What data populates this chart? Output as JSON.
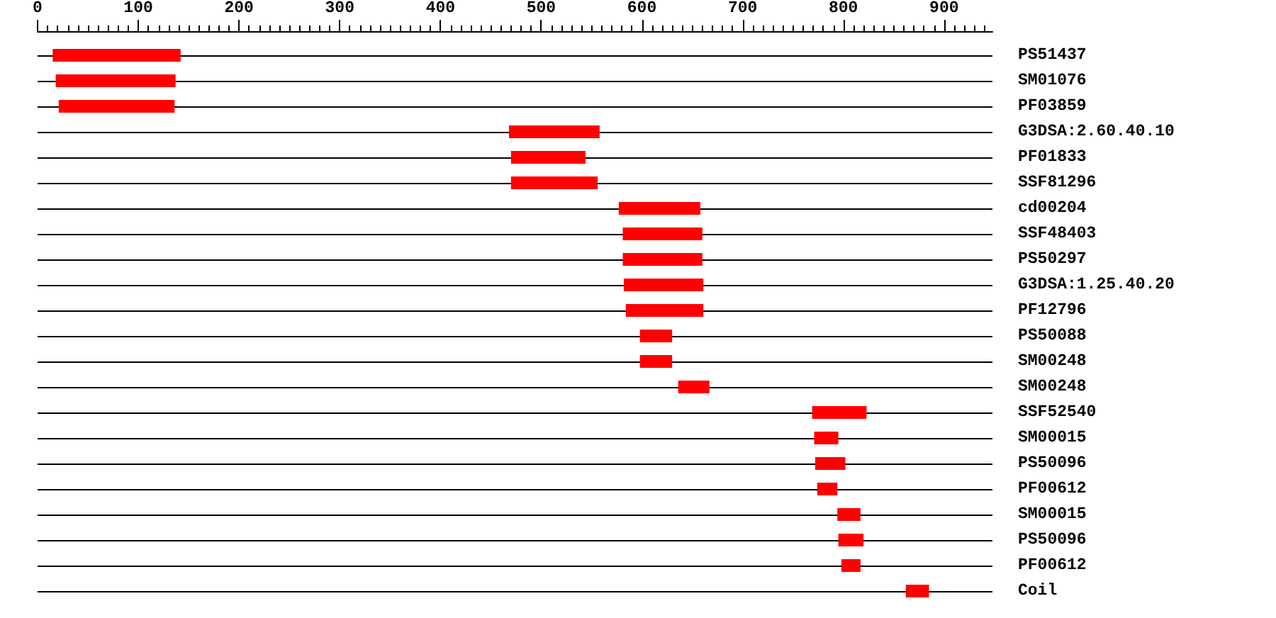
{
  "chart_data": {
    "type": "bar",
    "orientation": "horizontal",
    "color": "#ff0000",
    "grid": "y",
    "categories": [
      "PS51437",
      "SM01076",
      "PF03859",
      "G3DSA:2.60.40.10",
      "PF01833",
      "SSF81296",
      "cd00204",
      "SSF48403",
      "PS50297",
      "G3DSA:1.25.40.20",
      "PF12796",
      "PS50088",
      "SM00248",
      "SM00248",
      "SSF52540",
      "SM00015",
      "PS50096",
      "PF00612",
      "SM00015",
      "PS50096",
      "PF00612",
      "Coil"
    ],
    "base": [
      15,
      18,
      21,
      468,
      470,
      470,
      577,
      581,
      581,
      582,
      584,
      598,
      598,
      636,
      769,
      771,
      772,
      774,
      794,
      795,
      798,
      862
    ],
    "values": [
      127,
      119,
      115,
      90,
      74,
      86,
      81,
      79,
      79,
      79,
      77,
      32,
      32,
      31,
      54,
      24,
      30,
      20,
      23,
      25,
      19,
      23
    ],
    "xlim": [
      0,
      948
    ],
    "xticks": [
      0,
      {
        "value": 10,
        "label": null
      },
      {
        "value": 20,
        "label": null
      },
      {
        "value": 30,
        "label": null
      },
      {
        "value": 40,
        "label": null
      },
      {
        "value": 50,
        "label": null
      },
      {
        "value": 60,
        "label": null
      },
      {
        "value": 70,
        "label": null
      },
      {
        "value": 80,
        "label": null
      },
      {
        "value": 90,
        "label": null
      },
      100,
      {
        "value": 110,
        "label": null
      },
      {
        "value": 120,
        "label": null
      },
      {
        "value": 130,
        "label": null
      },
      {
        "value": 140,
        "label": null
      },
      {
        "value": 150,
        "label": null
      },
      {
        "value": 160,
        "label": null
      },
      {
        "value": 170,
        "label": null
      },
      {
        "value": 180,
        "label": null
      },
      {
        "value": 190,
        "label": null
      },
      200,
      {
        "value": 210,
        "label": null
      },
      {
        "value": 220,
        "label": null
      },
      {
        "value": 230,
        "label": null
      },
      {
        "value": 240,
        "label": null
      },
      {
        "value": 250,
        "label": null
      },
      {
        "value": 260,
        "label": null
      },
      {
        "value": 270,
        "label": null
      },
      {
        "value": 280,
        "label": null
      },
      {
        "value": 290,
        "label": null
      },
      300,
      {
        "value": 310,
        "label": null
      },
      {
        "value": 320,
        "label": null
      },
      {
        "value": 330,
        "label": null
      },
      {
        "value": 340,
        "label": null
      },
      {
        "value": 350,
        "label": null
      },
      {
        "value": 360,
        "label": null
      },
      {
        "value": 370,
        "label": null
      },
      {
        "value": 380,
        "label": null
      },
      {
        "value": 390,
        "label": null
      },
      400,
      {
        "value": 410,
        "label": null
      },
      {
        "value": 420,
        "label": null
      },
      {
        "value": 430,
        "label": null
      },
      {
        "value": 440,
        "label": null
      },
      {
        "value": 450,
        "label": null
      },
      {
        "value": 460,
        "label": null
      },
      {
        "value": 470,
        "label": null
      },
      {
        "value": 480,
        "label": null
      },
      {
        "value": 490,
        "label": null
      },
      500,
      {
        "value": 510,
        "label": null
      },
      {
        "value": 520,
        "label": null
      },
      {
        "value": 530,
        "label": null
      },
      {
        "value": 540,
        "label": null
      },
      {
        "value": 550,
        "label": null
      },
      {
        "value": 560,
        "label": null
      },
      {
        "value": 570,
        "label": null
      },
      {
        "value": 580,
        "label": null
      },
      {
        "value": 590,
        "label": null
      },
      600,
      {
        "value": 610,
        "label": null
      },
      {
        "value": 620,
        "label": null
      },
      {
        "value": 630,
        "label": null
      },
      {
        "value": 640,
        "label": null
      },
      {
        "value": 650,
        "label": null
      },
      {
        "value": 660,
        "label": null
      },
      {
        "value": 670,
        "label": null
      },
      {
        "value": 680,
        "label": null
      },
      {
        "value": 690,
        "label": null
      },
      700,
      {
        "value": 710,
        "label": null
      },
      {
        "value": 720,
        "label": null
      },
      {
        "value": 730,
        "label": null
      },
      {
        "value": 740,
        "label": null
      },
      {
        "value": 750,
        "label": null
      },
      {
        "value": 760,
        "label": null
      },
      {
        "value": 770,
        "label": null
      },
      {
        "value": 780,
        "label": null
      },
      {
        "value": 790,
        "label": null
      },
      800,
      {
        "value": 810,
        "label": null
      },
      {
        "value": 820,
        "label": null
      },
      {
        "value": 830,
        "label": null
      },
      {
        "value": 840,
        "label": null
      },
      {
        "value": 850,
        "label": null
      },
      {
        "value": 860,
        "label": null
      },
      {
        "value": 870,
        "label": null
      },
      {
        "value": 880,
        "label": null
      },
      {
        "value": 890,
        "label": null
      },
      900,
      {
        "value": 910,
        "label": null
      },
      {
        "value": 920,
        "label": null
      },
      {
        "value": 930,
        "label": null
      },
      {
        "value": 940,
        "label": null
      }
    ]
  }
}
